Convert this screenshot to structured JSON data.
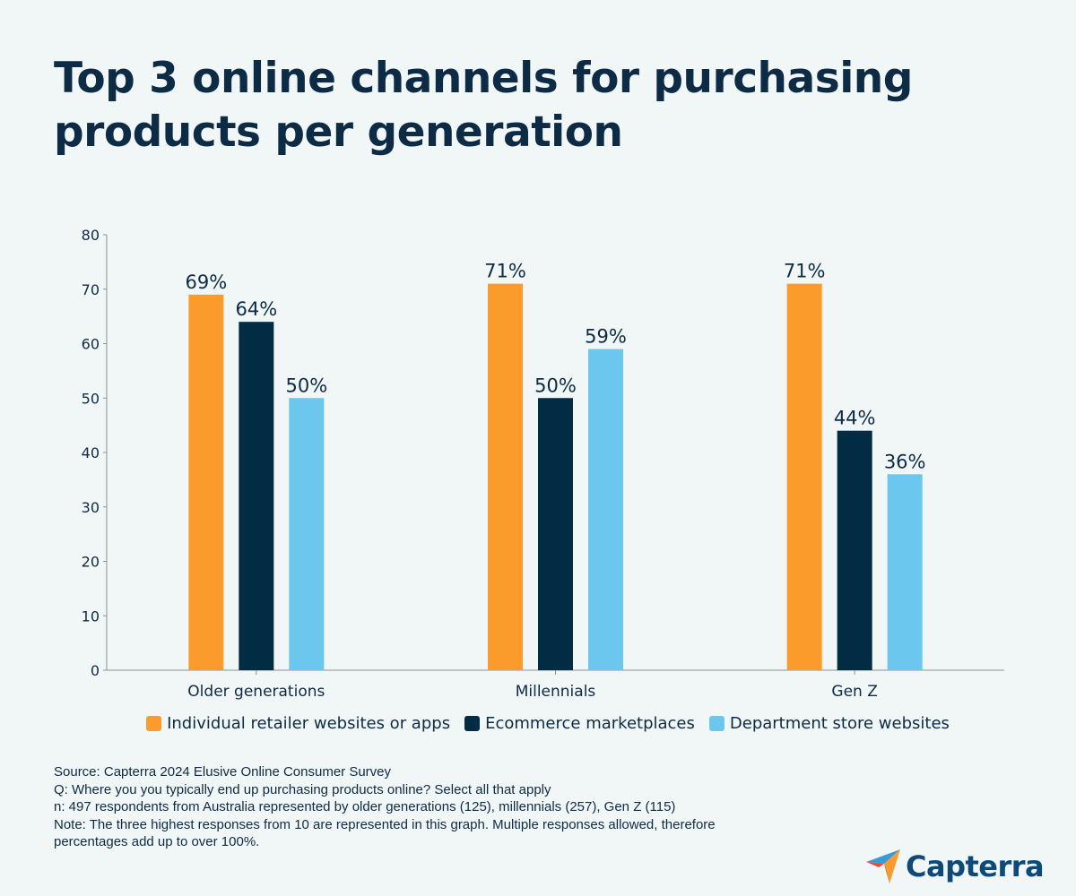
{
  "title": "Top 3 online channels for purchasing products per generation",
  "chart_data": {
    "type": "bar",
    "categories": [
      "Older generations",
      "Millennials",
      "Gen Z"
    ],
    "series": [
      {
        "name": "Individual retailer websites or apps",
        "values": [
          69,
          71,
          71
        ],
        "labels": [
          "69%",
          "71%",
          "71%"
        ],
        "color": "#fb9b2c"
      },
      {
        "name": "Ecommerce marketplaces",
        "values": [
          64,
          50,
          44
        ],
        "labels": [
          "64%",
          "50%",
          "44%"
        ],
        "color": "#012c44"
      },
      {
        "name": "Department store websites",
        "values": [
          50,
          59,
          36
        ],
        "labels": [
          "50%",
          "59%",
          "36%"
        ],
        "color": "#6bc7ee"
      }
    ],
    "ylim": [
      0,
      80
    ],
    "yticks": [
      0,
      10,
      20,
      30,
      40,
      50,
      60,
      70,
      80
    ],
    "xlabel": "",
    "ylabel": "",
    "grid": false,
    "legend_position": "bottom"
  },
  "footnotes": [
    "Source: Capterra 2024 Elusive Online Consumer Survey",
    "Q: Where you you typically end up purchasing products online? Select all that apply",
    "n: 497 respondents from Australia represented by older generations (125), millennials (257), Gen Z (115)",
    "Note: The three highest responses from 10 are represented in this graph. Multiple responses allowed, therefore percentages add up to over 100%."
  ],
  "logo": {
    "text": "Capterra",
    "colors": {
      "orange": "#fb9b2c",
      "blue": "#0d4a7a",
      "light_blue": "#3a9bd9",
      "red": "#e84a3c"
    }
  }
}
